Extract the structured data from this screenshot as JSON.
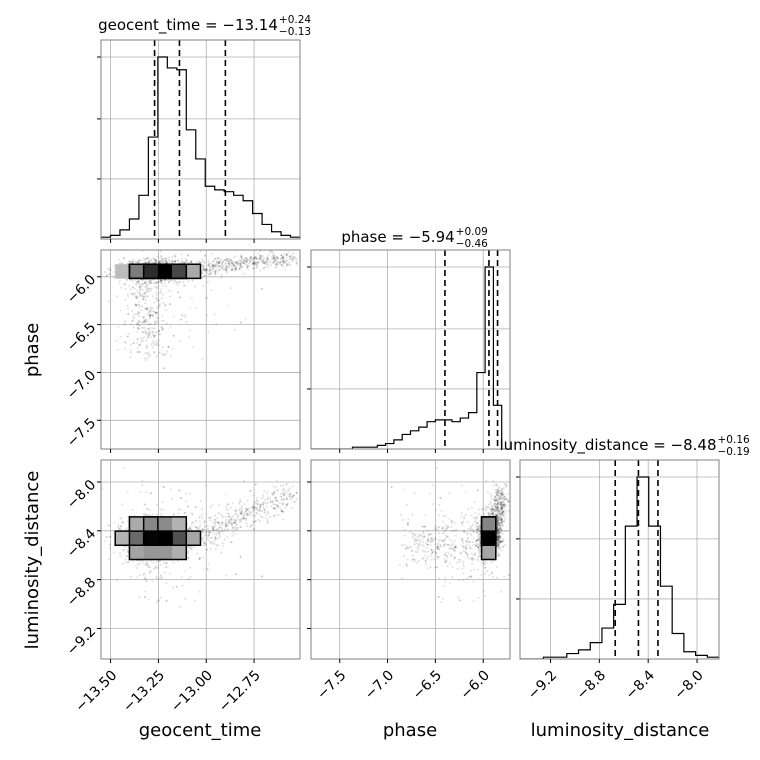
{
  "chart_data": {
    "type": "corner",
    "parameters": [
      "geocent_time",
      "phase",
      "luminosity_distance"
    ],
    "titles": [
      {
        "name": "geocent_time",
        "prefix": "geocent_time = ",
        "median": "−13.14",
        "plus": "+0.24",
        "minus": "−0.13"
      },
      {
        "name": "phase",
        "prefix": "phase = ",
        "median": "−5.94",
        "plus": "+0.09",
        "minus": "−0.46"
      },
      {
        "name": "luminosity_distance",
        "prefix": "luminosity_distance = ",
        "median": "−8.48",
        "plus": "+0.16",
        "minus": "−0.19"
      }
    ],
    "ranges": {
      "geocent_time": [
        -13.55,
        -12.51
      ],
      "phase": [
        -7.8,
        -5.72
      ],
      "luminosity_distance": [
        -9.45,
        -7.82
      ]
    },
    "ticks": {
      "geocent_time": [
        {
          "v": -13.5,
          "label": "−13.50"
        },
        {
          "v": -13.25,
          "label": "−13.25"
        },
        {
          "v": -13.0,
          "label": "−13.00"
        },
        {
          "v": -12.75,
          "label": "−12.75"
        }
      ],
      "phase": [
        {
          "v": -7.5,
          "label": "−7.5"
        },
        {
          "v": -7.0,
          "label": "−7.0"
        },
        {
          "v": -6.5,
          "label": "−6.5"
        },
        {
          "v": -6.0,
          "label": "−6.0"
        }
      ],
      "luminosity_distance": [
        {
          "v": -9.2,
          "label": "−9.2"
        },
        {
          "v": -8.8,
          "label": "−8.8"
        },
        {
          "v": -8.4,
          "label": "−8.4"
        },
        {
          "v": -8.0,
          "label": "−8.0"
        }
      ]
    },
    "quantiles": {
      "geocent_time": [
        -13.27,
        -13.14,
        -12.9
      ],
      "phase": [
        -6.4,
        -5.94,
        -5.85
      ],
      "luminosity_distance": [
        -8.67,
        -8.48,
        -8.32
      ]
    },
    "histograms": {
      "geocent_time": {
        "edges_range": [
          -13.55,
          -12.51
        ],
        "counts": [
          1,
          2,
          5,
          11,
          24,
          56,
          100,
          94,
          93,
          60,
          44,
          29,
          27,
          26,
          24,
          21,
          14,
          8,
          4,
          2,
          1
        ]
      },
      "phase": {
        "edges_range": [
          -7.8,
          -5.72
        ],
        "counts": [
          0,
          0,
          0,
          0,
          0,
          1,
          1,
          1,
          2,
          3,
          5,
          8,
          10,
          12,
          15,
          16,
          16,
          15,
          17,
          20,
          42,
          100,
          24,
          0
        ]
      },
      "luminosity_distance": {
        "edges_range": [
          -9.45,
          -7.82
        ],
        "counts": [
          0,
          0,
          1,
          1,
          3,
          5,
          9,
          17,
          30,
          73,
          100,
          73,
          40,
          14,
          4,
          2,
          1
        ]
      }
    },
    "grid": true,
    "contour_levels": 3
  }
}
